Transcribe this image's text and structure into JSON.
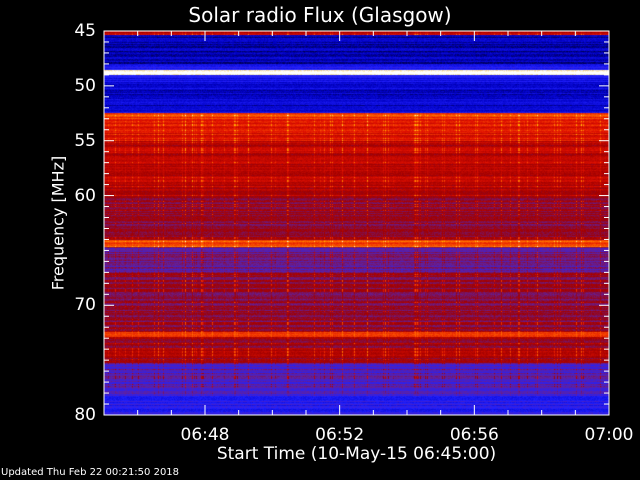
{
  "chart_data": {
    "type": "heatmap",
    "title": "Solar radio Flux (Glasgow)",
    "xlabel": "Start Time (10-May-15 06:45:00)",
    "ylabel": "Frequency [MHz]",
    "x_range": [
      "06:45",
      "07:00"
    ],
    "y_range": [
      45,
      80
    ],
    "y_inverted": true,
    "x_ticks": [
      "06:48",
      "06:52",
      "06:56",
      "07:00"
    ],
    "y_ticks": [
      45,
      50,
      55,
      60,
      70,
      80
    ],
    "colormap": [
      "#000000",
      "#0000c0",
      "#2020ff",
      "#6020a0",
      "#a00000",
      "#e01000",
      "#ff6000",
      "#ffc000",
      "#ffffff"
    ],
    "band_profile": [
      {
        "from": 45.0,
        "to": 45.3,
        "level": 0.55
      },
      {
        "from": 45.3,
        "to": 48.0,
        "level": 0.12
      },
      {
        "from": 48.0,
        "to": 48.5,
        "level": 0.22
      },
      {
        "from": 48.5,
        "to": 49.0,
        "level": 1.0
      },
      {
        "from": 49.0,
        "to": 49.6,
        "level": 0.22
      },
      {
        "from": 49.6,
        "to": 52.4,
        "level": 0.16
      },
      {
        "from": 52.4,
        "to": 53.0,
        "level": 0.7
      },
      {
        "from": 53.0,
        "to": 55.0,
        "level": 0.62
      },
      {
        "from": 55.0,
        "to": 60.0,
        "level": 0.55
      },
      {
        "from": 60.0,
        "to": 64.0,
        "level": 0.47
      },
      {
        "from": 64.0,
        "to": 64.6,
        "level": 0.72
      },
      {
        "from": 64.6,
        "to": 67.0,
        "level": 0.38
      },
      {
        "from": 67.0,
        "to": 72.4,
        "level": 0.46
      },
      {
        "from": 72.4,
        "to": 72.8,
        "level": 0.68
      },
      {
        "from": 72.8,
        "to": 75.2,
        "level": 0.5
      },
      {
        "from": 75.2,
        "to": 78.2,
        "level": 0.34
      },
      {
        "from": 78.2,
        "to": 80.0,
        "level": 0.26
      }
    ]
  },
  "footer": {
    "updated": "Updated Thu Feb 22 00:21:50 2018"
  }
}
